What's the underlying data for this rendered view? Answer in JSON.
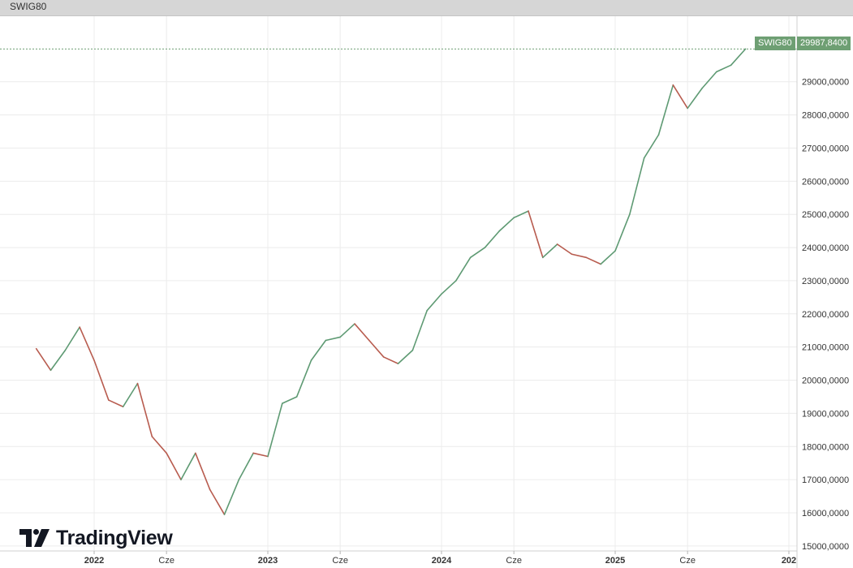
{
  "header": {
    "symbol": "SWIG80"
  },
  "last_price": {
    "symbol": "SWIG80",
    "value": "29987,8400"
  },
  "logo": {
    "text": "TradingView"
  },
  "colors": {
    "up": "#5e9a73",
    "down": "#b85c4f",
    "grid": "#ececec",
    "axis_text": "#333333",
    "price_line": "#6e9f73",
    "tag_bg": "#6e9f73"
  },
  "chart_data": {
    "type": "line",
    "title": "SWIG80",
    "y_axis_side": "right",
    "grid": true,
    "ylim": [
      14850,
      31000
    ],
    "x_range": [
      "2021-09",
      "2026-01"
    ],
    "y_ticks": [
      {
        "value": 15000,
        "label": "15000,0000"
      },
      {
        "value": 16000,
        "label": "16000,0000"
      },
      {
        "value": 17000,
        "label": "17000,0000"
      },
      {
        "value": 18000,
        "label": "18000,0000"
      },
      {
        "value": 19000,
        "label": "19000,0000"
      },
      {
        "value": 20000,
        "label": "20000,0000"
      },
      {
        "value": 21000,
        "label": "21000,0000"
      },
      {
        "value": 22000,
        "label": "22000,0000"
      },
      {
        "value": 23000,
        "label": "23000,0000"
      },
      {
        "value": 24000,
        "label": "24000,0000"
      },
      {
        "value": 25000,
        "label": "25000,0000"
      },
      {
        "value": 26000,
        "label": "26000,0000"
      },
      {
        "value": 27000,
        "label": "27000,0000"
      },
      {
        "value": 28000,
        "label": "28000,0000"
      },
      {
        "value": 29000,
        "label": "29000,0000"
      }
    ],
    "x_ticks": [
      {
        "date": "2022-01",
        "label": "2022",
        "bold": true
      },
      {
        "date": "2022-06",
        "label": "Cze",
        "bold": false
      },
      {
        "date": "2023-01",
        "label": "2023",
        "bold": true
      },
      {
        "date": "2023-06",
        "label": "Cze",
        "bold": false
      },
      {
        "date": "2024-01",
        "label": "2024",
        "bold": true
      },
      {
        "date": "2024-06",
        "label": "Cze",
        "bold": false
      },
      {
        "date": "2025-01",
        "label": "2025",
        "bold": true
      },
      {
        "date": "2025-06",
        "label": "Cze",
        "bold": false
      },
      {
        "date": "2026-01",
        "label": "202",
        "bold": true
      }
    ],
    "series": [
      {
        "values": [
          [
            "2021-09",
            20950
          ],
          [
            "2021-10",
            20300
          ],
          [
            "2021-11",
            20900
          ],
          [
            "2021-12",
            21600
          ],
          [
            "2022-01",
            20600
          ],
          [
            "2022-02",
            19400
          ],
          [
            "2022-03",
            19200
          ],
          [
            "2022-04",
            19900
          ],
          [
            "2022-05",
            18300
          ],
          [
            "2022-06",
            17800
          ],
          [
            "2022-07",
            17000
          ],
          [
            "2022-08",
            17800
          ],
          [
            "2022-09",
            16700
          ],
          [
            "2022-10",
            15950
          ],
          [
            "2022-11",
            17000
          ],
          [
            "2022-12",
            17800
          ],
          [
            "2023-01",
            17700
          ],
          [
            "2023-02",
            19300
          ],
          [
            "2023-03",
            19500
          ],
          [
            "2023-04",
            20600
          ],
          [
            "2023-05",
            21200
          ],
          [
            "2023-06",
            21300
          ],
          [
            "2023-07",
            21700
          ],
          [
            "2023-08",
            21200
          ],
          [
            "2023-09",
            20700
          ],
          [
            "2023-10",
            20500
          ],
          [
            "2023-11",
            20900
          ],
          [
            "2023-12",
            22100
          ],
          [
            "2024-01",
            22600
          ],
          [
            "2024-02",
            23000
          ],
          [
            "2024-03",
            23700
          ],
          [
            "2024-04",
            24000
          ],
          [
            "2024-05",
            24500
          ],
          [
            "2024-06",
            24900
          ],
          [
            "2024-07",
            25100
          ],
          [
            "2024-08",
            23700
          ],
          [
            "2024-09",
            24100
          ],
          [
            "2024-10",
            23800
          ],
          [
            "2024-11",
            23700
          ],
          [
            "2024-12",
            23500
          ],
          [
            "2025-01",
            23900
          ],
          [
            "2025-02",
            25000
          ],
          [
            "2025-03",
            26700
          ],
          [
            "2025-04",
            27400
          ],
          [
            "2025-05",
            28900
          ],
          [
            "2025-06",
            28200
          ],
          [
            "2025-07",
            28800
          ],
          [
            "2025-08",
            29300
          ],
          [
            "2025-09",
            29500
          ],
          [
            "2025-10",
            29988
          ]
        ]
      }
    ]
  }
}
